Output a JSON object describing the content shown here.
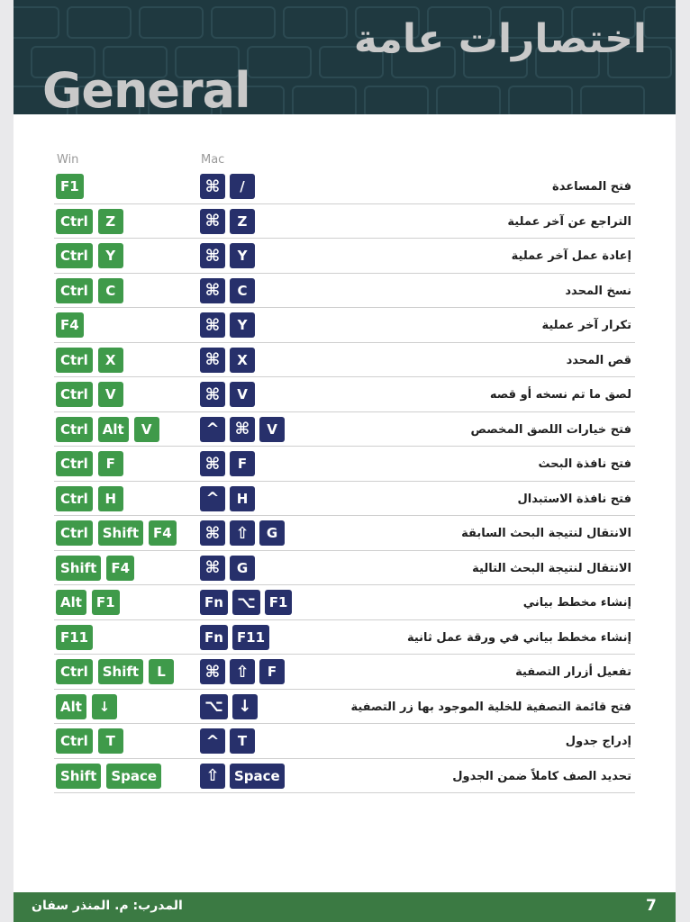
{
  "header": {
    "title_ar": "اختصارات عامة",
    "title_en": "General"
  },
  "columns": {
    "win": "Win",
    "mac": "Mac"
  },
  "colors": {
    "win_key": "#3f9a4a",
    "mac_key": "#27306b",
    "header_bg": "#1f3940",
    "footer_bg": "#3b7a43"
  },
  "rows": [
    {
      "win": [
        "F1"
      ],
      "mac": [
        "⌘",
        "/"
      ],
      "desc": "فتح المساعدة"
    },
    {
      "win": [
        "Ctrl",
        "Z"
      ],
      "mac": [
        "⌘",
        "Z"
      ],
      "desc": "التراجع عن آخر عملية"
    },
    {
      "win": [
        "Ctrl",
        "Y"
      ],
      "mac": [
        "⌘",
        "Y"
      ],
      "desc": "إعادة عمل آخر عملية"
    },
    {
      "win": [
        "Ctrl",
        "C"
      ],
      "mac": [
        "⌘",
        "C"
      ],
      "desc": "نسخ المحدد"
    },
    {
      "win": [
        "F4"
      ],
      "mac": [
        "⌘",
        "Y"
      ],
      "desc": "تكرار آخر عملية"
    },
    {
      "win": [
        "Ctrl",
        "X"
      ],
      "mac": [
        "⌘",
        "X"
      ],
      "desc": "قص المحدد"
    },
    {
      "win": [
        "Ctrl",
        "V"
      ],
      "mac": [
        "⌘",
        "V"
      ],
      "desc": "لصق ما تم نسخه أو قصه"
    },
    {
      "win": [
        "Ctrl",
        "Alt",
        "V"
      ],
      "mac": [
        "^",
        "⌘",
        "V"
      ],
      "desc": "فتح خيارات اللصق المخصص"
    },
    {
      "win": [
        "Ctrl",
        "F"
      ],
      "mac": [
        "⌘",
        "F"
      ],
      "desc": "فتح نافذة البحث"
    },
    {
      "win": [
        "Ctrl",
        "H"
      ],
      "mac": [
        "^",
        "H"
      ],
      "desc": "فتح نافذة الاستبدال"
    },
    {
      "win": [
        "Ctrl",
        "Shift",
        "F4"
      ],
      "mac": [
        "⌘",
        "⇧",
        "G"
      ],
      "desc": "الانتقال لنتيجة البحث السابقة"
    },
    {
      "win": [
        "Shift",
        "F4"
      ],
      "mac": [
        "⌘",
        "G"
      ],
      "desc": "الانتقال لنتيجة البحث التالية"
    },
    {
      "win": [
        "Alt",
        "F1"
      ],
      "mac": [
        "Fn",
        "⌥",
        "F1"
      ],
      "desc": "إنشاء مخطط بياني"
    },
    {
      "win": [
        "F11"
      ],
      "mac": [
        "Fn",
        "F11"
      ],
      "desc": "إنشاء مخطط بياني في ورقة عمل ثانية"
    },
    {
      "win": [
        "Ctrl",
        "Shift",
        "L"
      ],
      "mac": [
        "⌘",
        "⇧",
        "F"
      ],
      "desc": "تفعيل أزرار التصفية"
    },
    {
      "win": [
        "Alt",
        "↓"
      ],
      "mac": [
        "⌥",
        "↓"
      ],
      "desc": "فتح قائمة التصفية للخلية الموجود بها زر التصفية"
    },
    {
      "win": [
        "Ctrl",
        "T"
      ],
      "mac": [
        "^",
        "T"
      ],
      "desc": "إدراج جدول"
    },
    {
      "win": [
        "Shift",
        "Space"
      ],
      "mac": [
        "⇧",
        "Space"
      ],
      "desc": "تحديد الصف كاملاً ضمن الجدول"
    }
  ],
  "footer": {
    "page_number": "7",
    "trainer": "المدرب: م. المنذر سفان"
  }
}
